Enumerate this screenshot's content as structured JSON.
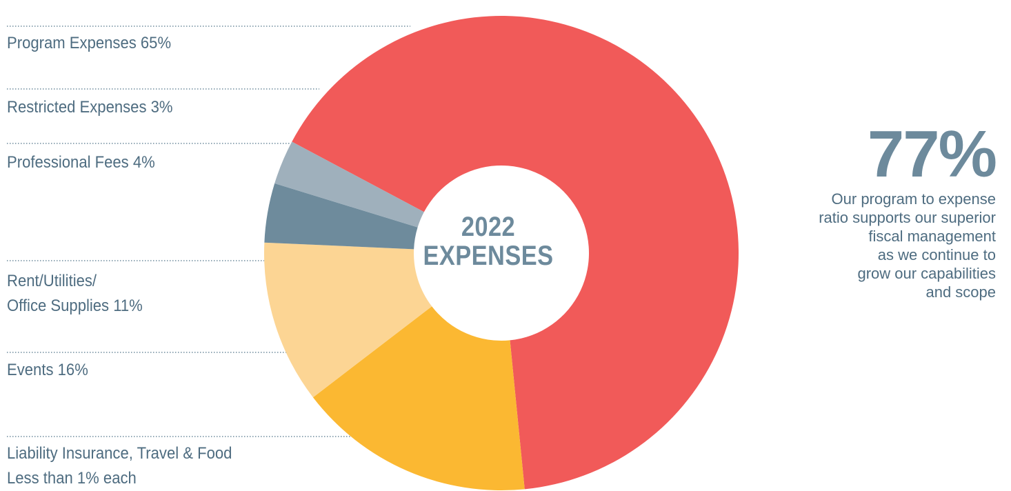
{
  "chart_data": {
    "type": "pie",
    "title": "2022 EXPENSES",
    "slices": [
      {
        "name": "Program Expenses",
        "value": 65,
        "color": "#f15a59"
      },
      {
        "name": "Events",
        "value": 16,
        "color": "#fbb832"
      },
      {
        "name": "Rent/Utilities/ Office Supplies",
        "value": 11,
        "color": "#fcd594"
      },
      {
        "name": "Professional Fees",
        "value": 4,
        "color": "#6e8b9c"
      },
      {
        "name": "Restricted Expenses",
        "value": 3,
        "color": "#9fb0bc"
      }
    ]
  },
  "labels": {
    "program": "Program Expenses 65%",
    "restricted": "Restricted Expenses 3%",
    "professional": "Professional Fees 4%",
    "rent_line1": "Rent/Utilities/",
    "rent_line2": "Office Supplies 11%",
    "events": "Events 16%",
    "liability_line1": "Liability Insurance, Travel & Food",
    "liability_line2": "Less than 1% each"
  },
  "center": {
    "line1": "2022",
    "line2": "EXPENSES"
  },
  "stat": {
    "value": "77%",
    "description": "Our program to expense\nratio supports our superior\nfiscal management\nas we continue to\ngrow our capabilities\nand scope"
  },
  "colors": {
    "accent_slate": "#6d8a9c",
    "text": "#4e6c80"
  }
}
